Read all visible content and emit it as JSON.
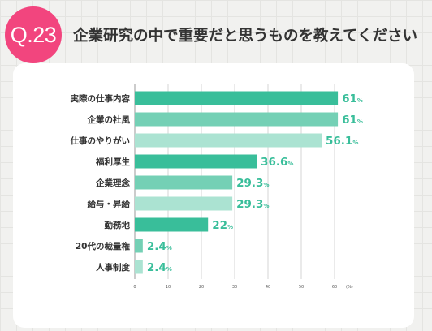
{
  "header": {
    "badge": "Q.23",
    "title": "企業研究の中で重要だと思うものを教えてください"
  },
  "chart_data": {
    "type": "bar",
    "orientation": "horizontal",
    "categories": [
      "実際の仕事内容",
      "企業の社風",
      "仕事のやりがい",
      "福利厚生",
      "企業理念",
      "給与・昇給",
      "勤務地",
      "20代の裁量権",
      "人事制度"
    ],
    "values": [
      61,
      61,
      56.1,
      36.6,
      29.3,
      29.3,
      22,
      2.4,
      2.4
    ],
    "value_labels": [
      "61",
      "61",
      "56.1",
      "36.6",
      "29.3",
      "29.3",
      "22",
      "2.4",
      "2.4"
    ],
    "value_unit": "%",
    "xlim": [
      0,
      60
    ],
    "xticks": [
      "0",
      "10",
      "20",
      "30",
      "40",
      "50",
      "60"
    ],
    "xunit": "(%)",
    "grid": true,
    "colors": {
      "bars": [
        "#39be9a",
        "#74d0b5",
        "#abe3d2",
        "#39be9a",
        "#74d0b5",
        "#abe3d2",
        "#39be9a",
        "#74d0b5",
        "#abe3d2"
      ],
      "label": "#39be9a"
    }
  }
}
